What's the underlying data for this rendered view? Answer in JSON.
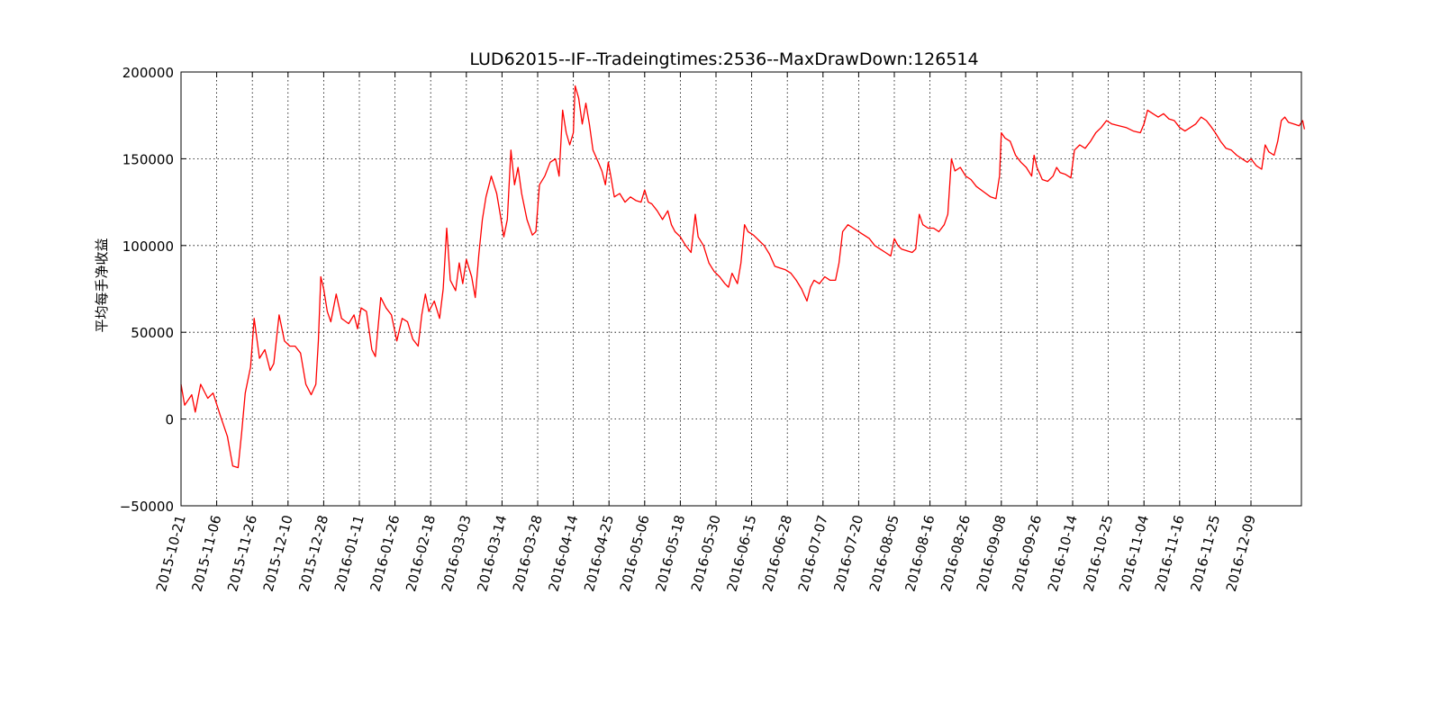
{
  "chart_data": {
    "type": "line",
    "title": "LUD62015--IF--Tradeingtimes:2536--MaxDrawDown:126514",
    "xlabel": "",
    "ylabel": "平均每手净收益",
    "ylim": [
      -50000,
      200000
    ],
    "yticks": [
      -50000,
      0,
      50000,
      100000,
      150000,
      200000
    ],
    "ytick_labels": [
      "−50000",
      "0",
      "50000",
      "100000",
      "150000",
      "200000"
    ],
    "xticks": [
      "2015-10-21",
      "2015-11-06",
      "2015-11-26",
      "2015-12-10",
      "2015-12-28",
      "2016-01-11",
      "2016-01-26",
      "2016-02-18",
      "2016-03-03",
      "2016-03-14",
      "2016-03-28",
      "2016-04-14",
      "2016-04-25",
      "2016-05-06",
      "2016-05-18",
      "2016-05-30",
      "2016-06-15",
      "2016-06-28",
      "2016-07-07",
      "2016-07-20",
      "2016-08-05",
      "2016-08-16",
      "2016-08-26",
      "2016-09-08",
      "2016-09-26",
      "2016-10-14",
      "2016-10-25",
      "2016-11-04",
      "2016-11-16",
      "2016-11-25",
      "2016-12-09"
    ],
    "grid": true,
    "line_color": "#ff0000",
    "series": [
      {
        "points": [
          [
            0.0,
            20000
          ],
          [
            0.1,
            8000
          ],
          [
            0.3,
            14000
          ],
          [
            0.4,
            4000
          ],
          [
            0.55,
            20000
          ],
          [
            0.75,
            12000
          ],
          [
            0.9,
            15000
          ],
          [
            1.1,
            2000
          ],
          [
            1.3,
            -10000
          ],
          [
            1.45,
            -27000
          ],
          [
            1.6,
            -28000
          ],
          [
            1.7,
            -8000
          ],
          [
            1.8,
            15000
          ],
          [
            1.95,
            30000
          ],
          [
            2.05,
            58000
          ],
          [
            2.2,
            35000
          ],
          [
            2.35,
            40000
          ],
          [
            2.5,
            28000
          ],
          [
            2.6,
            32000
          ],
          [
            2.75,
            60000
          ],
          [
            2.9,
            45000
          ],
          [
            3.05,
            42000
          ],
          [
            3.2,
            42000
          ],
          [
            3.35,
            38000
          ],
          [
            3.5,
            20000
          ],
          [
            3.65,
            14000
          ],
          [
            3.78,
            20000
          ],
          [
            3.85,
            45000
          ],
          [
            3.92,
            82000
          ],
          [
            4.0,
            75000
          ],
          [
            4.1,
            62000
          ],
          [
            4.2,
            56000
          ],
          [
            4.35,
            72000
          ],
          [
            4.5,
            58000
          ],
          [
            4.7,
            55000
          ],
          [
            4.85,
            60000
          ],
          [
            4.95,
            52000
          ],
          [
            5.05,
            64000
          ],
          [
            5.2,
            62000
          ],
          [
            5.35,
            40000
          ],
          [
            5.45,
            36000
          ],
          [
            5.6,
            70000
          ],
          [
            5.75,
            64000
          ],
          [
            5.9,
            60000
          ],
          [
            6.05,
            45000
          ],
          [
            6.2,
            58000
          ],
          [
            6.35,
            56000
          ],
          [
            6.5,
            46000
          ],
          [
            6.65,
            42000
          ],
          [
            6.75,
            60000
          ],
          [
            6.85,
            72000
          ],
          [
            6.95,
            62000
          ],
          [
            7.1,
            68000
          ],
          [
            7.25,
            58000
          ],
          [
            7.35,
            75000
          ],
          [
            7.45,
            110000
          ],
          [
            7.55,
            80000
          ],
          [
            7.7,
            74000
          ],
          [
            7.8,
            90000
          ],
          [
            7.9,
            78000
          ],
          [
            8.0,
            92000
          ],
          [
            8.15,
            82000
          ],
          [
            8.25,
            70000
          ],
          [
            8.35,
            95000
          ],
          [
            8.45,
            115000
          ],
          [
            8.55,
            128000
          ],
          [
            8.7,
            140000
          ],
          [
            8.85,
            130000
          ],
          [
            8.95,
            118000
          ],
          [
            9.05,
            105000
          ],
          [
            9.15,
            115000
          ],
          [
            9.25,
            155000
          ],
          [
            9.35,
            135000
          ],
          [
            9.45,
            145000
          ],
          [
            9.55,
            130000
          ],
          [
            9.7,
            115000
          ],
          [
            9.85,
            106000
          ],
          [
            9.95,
            108000
          ],
          [
            10.05,
            135000
          ],
          [
            10.2,
            140000
          ],
          [
            10.35,
            148000
          ],
          [
            10.5,
            150000
          ],
          [
            10.6,
            140000
          ],
          [
            10.7,
            178000
          ],
          [
            10.8,
            165000
          ],
          [
            10.9,
            158000
          ],
          [
            11.0,
            165000
          ],
          [
            11.05,
            192000
          ],
          [
            11.15,
            185000
          ],
          [
            11.25,
            170000
          ],
          [
            11.35,
            182000
          ],
          [
            11.45,
            170000
          ],
          [
            11.55,
            155000
          ],
          [
            11.7,
            148000
          ],
          [
            11.8,
            143000
          ],
          [
            11.9,
            135000
          ],
          [
            11.98,
            148000
          ],
          [
            12.05,
            140000
          ],
          [
            12.15,
            128000
          ],
          [
            12.3,
            130000
          ],
          [
            12.45,
            125000
          ],
          [
            12.6,
            128000
          ],
          [
            12.75,
            126000
          ],
          [
            12.9,
            125000
          ],
          [
            13.0,
            132000
          ],
          [
            13.1,
            125000
          ],
          [
            13.2,
            124000
          ],
          [
            13.35,
            120000
          ],
          [
            13.5,
            115000
          ],
          [
            13.65,
            120000
          ],
          [
            13.75,
            112000
          ],
          [
            13.85,
            108000
          ],
          [
            14.0,
            105000
          ],
          [
            14.15,
            100000
          ],
          [
            14.3,
            96000
          ],
          [
            14.42,
            118000
          ],
          [
            14.5,
            105000
          ],
          [
            14.65,
            100000
          ],
          [
            14.8,
            90000
          ],
          [
            14.95,
            85000
          ],
          [
            15.1,
            82000
          ],
          [
            15.25,
            78000
          ],
          [
            15.35,
            76000
          ],
          [
            15.45,
            84000
          ],
          [
            15.6,
            78000
          ],
          [
            15.7,
            90000
          ],
          [
            15.8,
            112000
          ],
          [
            15.9,
            108000
          ],
          [
            16.05,
            106000
          ],
          [
            16.2,
            103000
          ],
          [
            16.35,
            100000
          ],
          [
            16.5,
            95000
          ],
          [
            16.65,
            88000
          ],
          [
            16.8,
            87000
          ],
          [
            16.95,
            86000
          ],
          [
            17.1,
            84000
          ],
          [
            17.25,
            80000
          ],
          [
            17.4,
            75000
          ],
          [
            17.55,
            68000
          ],
          [
            17.65,
            76000
          ],
          [
            17.75,
            80000
          ],
          [
            17.9,
            78000
          ],
          [
            18.05,
            82000
          ],
          [
            18.2,
            80000
          ],
          [
            18.35,
            80000
          ],
          [
            18.45,
            90000
          ],
          [
            18.55,
            108000
          ],
          [
            18.7,
            112000
          ],
          [
            18.85,
            110000
          ],
          [
            19.0,
            108000
          ],
          [
            19.15,
            106000
          ],
          [
            19.3,
            104000
          ],
          [
            19.45,
            100000
          ],
          [
            19.6,
            98000
          ],
          [
            19.75,
            96000
          ],
          [
            19.9,
            94000
          ],
          [
            20.0,
            104000
          ],
          [
            20.1,
            100000
          ],
          [
            20.2,
            98000
          ],
          [
            20.35,
            97000
          ],
          [
            20.5,
            96000
          ],
          [
            20.6,
            98000
          ],
          [
            20.7,
            118000
          ],
          [
            20.8,
            112000
          ],
          [
            20.95,
            110000
          ],
          [
            21.1,
            110000
          ],
          [
            21.25,
            108000
          ],
          [
            21.4,
            112000
          ],
          [
            21.5,
            118000
          ],
          [
            21.6,
            150000
          ],
          [
            21.7,
            143000
          ],
          [
            21.85,
            145000
          ],
          [
            22.0,
            140000
          ],
          [
            22.15,
            138000
          ],
          [
            22.3,
            134000
          ],
          [
            22.5,
            131000
          ],
          [
            22.7,
            128000
          ],
          [
            22.85,
            127000
          ],
          [
            22.95,
            140000
          ],
          [
            23.0,
            165000
          ],
          [
            23.1,
            162000
          ],
          [
            23.25,
            160000
          ],
          [
            23.4,
            152000
          ],
          [
            23.55,
            148000
          ],
          [
            23.7,
            145000
          ],
          [
            23.85,
            140000
          ],
          [
            23.92,
            152000
          ],
          [
            24.0,
            145000
          ],
          [
            24.15,
            138000
          ],
          [
            24.3,
            137000
          ],
          [
            24.45,
            140000
          ],
          [
            24.55,
            145000
          ],
          [
            24.65,
            142000
          ],
          [
            24.8,
            141000
          ],
          [
            24.95,
            139000
          ],
          [
            25.05,
            155000
          ],
          [
            25.2,
            158000
          ],
          [
            25.35,
            156000
          ],
          [
            25.5,
            160000
          ],
          [
            25.65,
            165000
          ],
          [
            25.8,
            168000
          ],
          [
            25.95,
            172000
          ],
          [
            26.1,
            170000
          ],
          [
            26.3,
            169000
          ],
          [
            26.5,
            168000
          ],
          [
            26.7,
            166000
          ],
          [
            26.9,
            165000
          ],
          [
            27.0,
            170000
          ],
          [
            27.1,
            178000
          ],
          [
            27.25,
            176000
          ],
          [
            27.4,
            174000
          ],
          [
            27.55,
            176000
          ],
          [
            27.7,
            173000
          ],
          [
            27.85,
            172000
          ],
          [
            28.0,
            168000
          ],
          [
            28.15,
            166000
          ],
          [
            28.3,
            168000
          ],
          [
            28.45,
            170000
          ],
          [
            28.6,
            174000
          ],
          [
            28.75,
            172000
          ],
          [
            28.9,
            168000
          ],
          [
            29.0,
            165000
          ],
          [
            29.15,
            160000
          ],
          [
            29.3,
            156000
          ],
          [
            29.45,
            155000
          ],
          [
            29.6,
            152000
          ],
          [
            29.75,
            150000
          ],
          [
            29.9,
            148000
          ],
          [
            30.0,
            150000
          ],
          [
            30.15,
            146000
          ],
          [
            30.3,
            144000
          ],
          [
            30.4,
            158000
          ],
          [
            30.5,
            154000
          ],
          [
            30.65,
            152000
          ],
          [
            30.75,
            160000
          ],
          [
            30.85,
            172000
          ],
          [
            30.95,
            174000
          ],
          [
            31.05,
            171000
          ],
          [
            31.2,
            170000
          ],
          [
            31.35,
            169000
          ],
          [
            31.45,
            172000
          ],
          [
            31.5,
            167000
          ]
        ]
      }
    ]
  }
}
